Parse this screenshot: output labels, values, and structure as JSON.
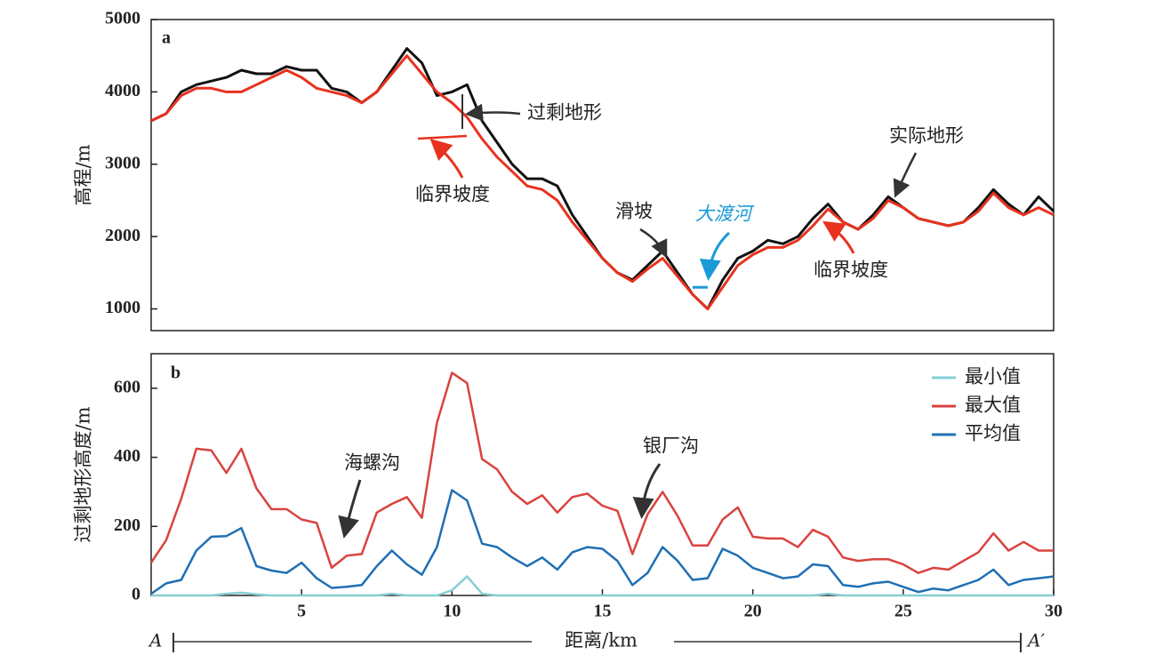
{
  "chart_data": [
    {
      "type": "line",
      "label": "a",
      "ylabel": "高程/m",
      "xlim": [
        0,
        30
      ],
      "ylim": [
        700,
        5000
      ],
      "yticks": [
        1000,
        2000,
        3000,
        4000,
        5000
      ],
      "x": [
        0,
        0.5,
        1,
        1.5,
        2,
        2.5,
        3,
        3.5,
        4,
        4.5,
        5,
        5.5,
        6,
        6.5,
        7,
        7.5,
        8,
        8.5,
        9,
        9.5,
        10,
        10.5,
        11,
        11.5,
        12,
        12.5,
        13,
        13.5,
        14,
        14.5,
        15,
        15.5,
        16,
        16.5,
        17,
        17.5,
        18,
        18.5,
        19,
        19.5,
        20,
        20.5,
        21,
        21.5,
        22,
        22.5,
        23,
        23.5,
        24,
        24.5,
        25,
        25.5,
        26,
        26.5,
        27,
        27.5,
        28,
        28.5,
        29,
        29.5,
        30
      ],
      "series": [
        {
          "name": "实际地形",
          "color": "#111111",
          "values": [
            3600,
            3700,
            4000,
            4100,
            4150,
            4200,
            4300,
            4250,
            4250,
            4350,
            4300,
            4300,
            4050,
            4000,
            3850,
            4000,
            4300,
            4600,
            4400,
            3950,
            4000,
            4100,
            3600,
            3300,
            3000,
            2800,
            2800,
            2700,
            2300,
            2000,
            1700,
            1500,
            1400,
            1600,
            1800,
            1500,
            1200,
            1000,
            1400,
            1700,
            1800,
            1950,
            1900,
            2000,
            2250,
            2450,
            2200,
            2100,
            2300,
            2550,
            2400,
            2250,
            2200,
            2150,
            2200,
            2400,
            2650,
            2450,
            2300,
            2550,
            2350
          ]
        },
        {
          "name": "临界坡度",
          "color": "#e8321e",
          "values": [
            3600,
            3700,
            3950,
            4050,
            4050,
            4000,
            4000,
            4100,
            4200,
            4300,
            4200,
            4050,
            4000,
            3950,
            3850,
            4000,
            4250,
            4500,
            4250,
            4000,
            3850,
            3650,
            3350,
            3100,
            2900,
            2700,
            2650,
            2500,
            2200,
            1950,
            1700,
            1500,
            1380,
            1550,
            1700,
            1450,
            1200,
            1000,
            1300,
            1600,
            1750,
            1850,
            1850,
            1950,
            2150,
            2380,
            2200,
            2100,
            2250,
            2500,
            2400,
            2250,
            2200,
            2150,
            2200,
            2350,
            2600,
            2400,
            2300,
            2400,
            2300
          ]
        },
        {
          "name": "大渡河",
          "color": "#1a9ad6",
          "values": [
            null,
            null,
            null,
            null,
            null,
            null,
            null,
            null,
            null,
            null,
            null,
            null,
            null,
            null,
            null,
            null,
            null,
            null,
            null,
            null,
            null,
            null,
            null,
            null,
            null,
            null,
            null,
            null,
            null,
            null,
            null,
            null,
            null,
            null,
            null,
            null,
            1300,
            1300,
            null,
            null,
            null,
            null,
            null,
            null,
            null,
            null,
            null,
            null,
            null,
            null,
            null,
            null,
            null,
            null,
            null,
            null,
            null,
            null,
            null,
            null,
            null
          ]
        }
      ],
      "annotations": [
        "过剩地形",
        "滑坡"
      ]
    },
    {
      "type": "line",
      "label": "b",
      "ylabel": "过剩地形高度/m",
      "xlim": [
        0,
        30
      ],
      "xticks": [
        5,
        10,
        15,
        20,
        25,
        30
      ],
      "ylim": [
        0,
        700
      ],
      "yticks": [
        0,
        200,
        400,
        600
      ],
      "x": [
        0,
        0.5,
        1,
        1.5,
        2,
        2.5,
        3,
        3.5,
        4,
        4.5,
        5,
        5.5,
        6,
        6.5,
        7,
        7.5,
        8,
        8.5,
        9,
        9.5,
        10,
        10.5,
        11,
        11.5,
        12,
        12.5,
        13,
        13.5,
        14,
        14.5,
        15,
        15.5,
        16,
        16.5,
        17,
        17.5,
        18,
        18.5,
        19,
        19.5,
        20,
        20.5,
        21,
        21.5,
        22,
        22.5,
        23,
        23.5,
        24,
        24.5,
        25,
        25.5,
        26,
        26.5,
        27,
        27.5,
        28,
        28.5,
        29,
        29.5,
        30
      ],
      "series": [
        {
          "name": "最小值",
          "color": "#86cfd3",
          "values": [
            0,
            0,
            0,
            0,
            0,
            5,
            8,
            3,
            0,
            0,
            0,
            0,
            0,
            0,
            0,
            0,
            5,
            0,
            0,
            0,
            15,
            55,
            5,
            0,
            0,
            0,
            0,
            0,
            0,
            0,
            0,
            0,
            0,
            0,
            0,
            0,
            0,
            0,
            0,
            0,
            0,
            0,
            0,
            0,
            0,
            5,
            0,
            0,
            0,
            0,
            0,
            0,
            0,
            0,
            0,
            0,
            0,
            0,
            0,
            0,
            0
          ]
        },
        {
          "name": "最大值",
          "color": "#d9433f",
          "values": [
            95,
            160,
            280,
            425,
            420,
            355,
            425,
            310,
            250,
            250,
            220,
            210,
            80,
            115,
            120,
            240,
            265,
            285,
            225,
            500,
            645,
            615,
            395,
            365,
            300,
            265,
            290,
            240,
            285,
            295,
            260,
            245,
            120,
            235,
            300,
            230,
            145,
            145,
            220,
            255,
            170,
            165,
            165,
            140,
            190,
            170,
            110,
            100,
            105,
            105,
            90,
            65,
            80,
            75,
            100,
            125,
            180,
            130,
            155,
            130,
            130
          ]
        },
        {
          "name": "平均值",
          "color": "#1f6fb4",
          "values": [
            5,
            35,
            45,
            130,
            170,
            172,
            195,
            85,
            72,
            65,
            95,
            50,
            22,
            25,
            30,
            85,
            130,
            90,
            60,
            140,
            305,
            275,
            150,
            140,
            110,
            85,
            110,
            75,
            125,
            140,
            135,
            100,
            30,
            65,
            140,
            100,
            45,
            50,
            135,
            115,
            80,
            65,
            50,
            55,
            90,
            85,
            30,
            25,
            35,
            40,
            25,
            10,
            20,
            15,
            30,
            45,
            75,
            30,
            45,
            50,
            55
          ]
        }
      ],
      "legend": "upper right",
      "annotations": [
        "海螺沟",
        "银厂沟"
      ],
      "xlabel": "距离/km",
      "section_start": "A",
      "section_end": "A′"
    }
  ]
}
